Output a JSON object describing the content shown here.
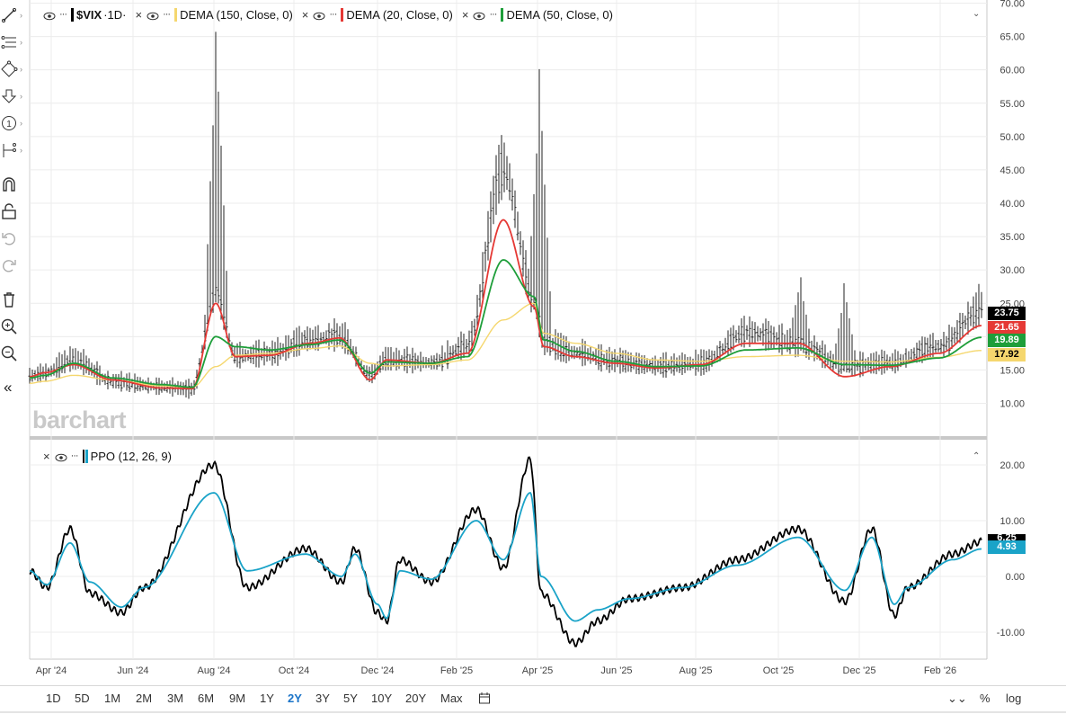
{
  "legend_top": {
    "symbol": "$VIX",
    "interval": "·1D·",
    "studies": [
      {
        "label": "DEMA (150, Close, 0)",
        "color": "#f5d76e"
      },
      {
        "label": "DEMA (20, Close, 0)",
        "color": "#e53935"
      },
      {
        "label": "DEMA (50, Close, 0)",
        "color": "#1e9e3a"
      }
    ]
  },
  "legend_bottom": {
    "label": "PPO (12, 26, 9)",
    "color": "#1aa3c8"
  },
  "watermark": "barchart",
  "price_badges": [
    {
      "value": "23.75",
      "bg": "#000000",
      "fg": "#ffffff"
    },
    {
      "value": "21.65",
      "bg": "#e53935",
      "fg": "#ffffff"
    },
    {
      "value": "19.89",
      "bg": "#1e9e3a",
      "fg": "#ffffff"
    },
    {
      "value": "17.92",
      "bg": "#f5d76e",
      "fg": "#000000"
    }
  ],
  "ppo_badges": [
    {
      "value": "6.25",
      "bg": "#000000",
      "fg": "#ffffff"
    },
    {
      "value": "4.93",
      "bg": "#1aa3c8",
      "fg": "#ffffff"
    }
  ],
  "time_ranges": [
    "1D",
    "5D",
    "1M",
    "2M",
    "3M",
    "6M",
    "9M",
    "1Y",
    "2Y",
    "3Y",
    "5Y",
    "10Y",
    "20Y",
    "Max"
  ],
  "active_range": "2Y",
  "bottom_right": {
    "percent": "%",
    "log": "log"
  },
  "toolbar_icons": [
    "line-tool-icon",
    "fib-tool-icon",
    "shape-tool-icon",
    "arrow-tool-icon",
    "number-tool-icon",
    "measure-tool-icon",
    "magnet-icon",
    "lock-icon",
    "undo-icon",
    "redo-icon",
    "trash-icon",
    "zoom-in-icon",
    "zoom-out-icon",
    "collapse-panel-icon"
  ],
  "chart_data": [
    {
      "type": "ohlc",
      "title": "$VIX ·1D·",
      "x_tick_labels": [
        "Apr '24",
        "Jun '24",
        "Aug '24",
        "Oct '24",
        "Dec '24",
        "Feb '25",
        "Apr '25",
        "Jun '25",
        "Aug '25",
        "Oct '25",
        "Dec '25",
        "Feb '26"
      ],
      "y_tick_labels": [
        "10.00",
        "15.00",
        "20.00",
        "25.00",
        "30.00",
        "35.00",
        "40.00",
        "45.00",
        "50.00",
        "55.00",
        "60.00",
        "65.00",
        "70.00"
      ],
      "ylim": [
        7,
        70
      ],
      "grid": true,
      "anchors_x": [
        "Mar '24",
        "Apr '24",
        "May '24",
        "Jun '24",
        "Jul '24",
        "Aug '24",
        "Aug '24",
        "Aug '24",
        "Sep '24",
        "Oct '24",
        "Nov '24",
        "Dec '24",
        "Jan '25",
        "Feb '25",
        "Mar '25",
        "Apr '25",
        "Apr '25",
        "May '25",
        "Jun '25",
        "Jul '25",
        "Aug '25",
        "Sep '25",
        "Oct '25",
        "Nov '25",
        "Dec '25",
        "Jan '26",
        "Feb '26",
        "Mar '26"
      ],
      "series": [
        {
          "name": "$VIX",
          "color": "#000000",
          "close": [
            14.0,
            14.5,
            16.5,
            13.2,
            12.4,
            12.0,
            27.0,
            17.0,
            17.3,
            19.5,
            20.0,
            14.2,
            16.5,
            16.0,
            18.5,
            45.0,
            26.0,
            19.0,
            17.5,
            16.2,
            15.5,
            15.9,
            20.5,
            19.0,
            15.5,
            16.0,
            18.5,
            23.75
          ],
          "high_spikes": [
            {
              "x": "Aug '24",
              "value": 65.7
            },
            {
              "x": "Apr '25",
              "value": 60.1
            },
            {
              "x": "Oct '25",
              "value": 28.9
            },
            {
              "x": "Nov '25",
              "value": 28.0
            },
            {
              "x": "Mar '26",
              "value": 27.9
            }
          ]
        },
        {
          "name": "DEMA (150, Close, 0)",
          "color": "#f5d76e",
          "values": [
            13.0,
            13.3,
            14.2,
            13.5,
            12.6,
            12.4,
            15.5,
            17.2,
            17.5,
            18.2,
            18.6,
            16.0,
            15.6,
            15.8,
            16.5,
            22.5,
            25.0,
            20.5,
            19.0,
            17.5,
            16.5,
            16.3,
            17.0,
            17.2,
            16.3,
            16.2,
            16.9,
            17.92
          ]
        },
        {
          "name": "DEMA (20, Close, 0)",
          "color": "#e53935",
          "values": [
            14.0,
            14.6,
            15.8,
            13.5,
            12.3,
            12.2,
            25.0,
            17.0,
            17.2,
            19.0,
            19.8,
            13.5,
            16.5,
            16.0,
            17.5,
            37.5,
            24.5,
            18.5,
            17.0,
            16.0,
            15.3,
            15.8,
            19.0,
            19.0,
            14.0,
            15.5,
            17.5,
            21.65
          ]
        },
        {
          "name": "DEMA (50, Close, 0)",
          "color": "#1e9e3a",
          "values": [
            13.8,
            14.2,
            16.0,
            13.8,
            12.8,
            12.4,
            20.0,
            18.5,
            18.0,
            18.8,
            19.5,
            14.5,
            16.2,
            16.0,
            17.0,
            31.5,
            26.0,
            19.5,
            17.8,
            16.3,
            15.5,
            15.6,
            18.0,
            18.3,
            15.8,
            15.7,
            16.8,
            19.89
          ]
        }
      ]
    },
    {
      "type": "line",
      "title": "PPO (12, 26, 9)",
      "y_tick_labels": [
        "-10.00",
        "0.00",
        "10.00",
        "20.00"
      ],
      "ylim": [
        -14,
        23
      ],
      "grid": true,
      "series": [
        {
          "name": "PPO",
          "color": "#000000",
          "values": [
            1.0,
            -2.0,
            8.5,
            -3.0,
            -6.5,
            -2.0,
            20.0,
            -2.0,
            5.0,
            -1.0,
            5.0,
            -6.5,
            -8.0,
            3.0,
            -1.0,
            12.0,
            1.5,
            21.0,
            -3.0,
            -12.0,
            -8.0,
            -4.0,
            -2.0,
            3.0,
            8.5,
            -4.5,
            8.5,
            -7.0,
            -2.0,
            4.0,
            6.25
          ]
        },
        {
          "name": "Signal",
          "color": "#1aa3c8",
          "values": [
            1.0,
            -1.5,
            6.0,
            -1.0,
            -5.5,
            -2.0,
            15.0,
            1.0,
            4.0,
            0.0,
            4.0,
            -5.0,
            -7.5,
            1.0,
            -0.5,
            10.0,
            3.0,
            15.0,
            0.0,
            -8.0,
            -6.0,
            -4.0,
            -2.0,
            2.0,
            7.0,
            -2.5,
            7.0,
            -5.0,
            -2.0,
            3.0,
            4.93
          ]
        }
      ]
    }
  ]
}
